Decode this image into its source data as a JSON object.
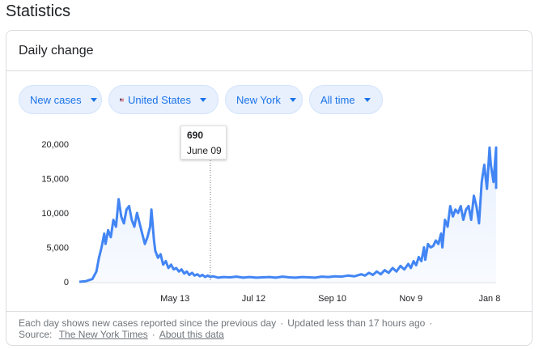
{
  "page": {
    "title": "Statistics"
  },
  "card": {
    "title": "Daily change"
  },
  "filters": {
    "metric": {
      "label": "New cases"
    },
    "country": {
      "label": "United States",
      "flag_icon": "us-flag-icon"
    },
    "region": {
      "label": "New York"
    },
    "range": {
      "label": "All time"
    }
  },
  "colors": {
    "line": "#4285f4",
    "area": "#e8f0fe",
    "accent": "#1a73e8"
  },
  "tooltip": {
    "value": "690",
    "date": "June 09"
  },
  "chart_data": {
    "type": "area",
    "ylim": [
      0,
      20000
    ],
    "y_ticks": [
      "0",
      "5,000",
      "10,000",
      "15,000",
      "20,000"
    ],
    "y_tick_values": [
      0,
      5000,
      10000,
      15000,
      20000
    ],
    "x_ticks": [
      {
        "label": "May 13",
        "day": 73
      },
      {
        "label": "Jul 12",
        "day": 133
      },
      {
        "label": "Sep 10",
        "day": 193
      },
      {
        "label": "Nov 9",
        "day": 253
      },
      {
        "label": "Jan 8",
        "day": 313
      }
    ],
    "xlim": [
      0,
      318
    ],
    "grid": false,
    "highlight_day": 100,
    "series": [
      {
        "points": [
          [
            0,
            0
          ],
          [
            5,
            100
          ],
          [
            10,
            400
          ],
          [
            13,
            1500
          ],
          [
            15,
            3500
          ],
          [
            17,
            5000
          ],
          [
            19,
            7000
          ],
          [
            20,
            5500
          ],
          [
            22,
            7500
          ],
          [
            24,
            6500
          ],
          [
            26,
            9000
          ],
          [
            28,
            8000
          ],
          [
            30,
            12000
          ],
          [
            32,
            9500
          ],
          [
            34,
            8500
          ],
          [
            36,
            10500
          ],
          [
            38,
            11000
          ],
          [
            40,
            9000
          ],
          [
            42,
            8000
          ],
          [
            44,
            10000
          ],
          [
            46,
            8500
          ],
          [
            48,
            7000
          ],
          [
            50,
            5500
          ],
          [
            52,
            6500
          ],
          [
            54,
            8000
          ],
          [
            55,
            10500
          ],
          [
            57,
            6000
          ],
          [
            58,
            4500
          ],
          [
            60,
            3500
          ],
          [
            62,
            4000
          ],
          [
            64,
            2500
          ],
          [
            66,
            3000
          ],
          [
            68,
            2000
          ],
          [
            70,
            2500
          ],
          [
            72,
            1800
          ],
          [
            74,
            2000
          ],
          [
            76,
            1500
          ],
          [
            78,
            1800
          ],
          [
            80,
            1200
          ],
          [
            82,
            1500
          ],
          [
            84,
            1000
          ],
          [
            86,
            1300
          ],
          [
            88,
            900
          ],
          [
            90,
            1100
          ],
          [
            92,
            800
          ],
          [
            94,
            1000
          ],
          [
            96,
            700
          ],
          [
            98,
            900
          ],
          [
            100,
            690
          ],
          [
            102,
            800
          ],
          [
            106,
            600
          ],
          [
            110,
            700
          ],
          [
            115,
            650
          ],
          [
            120,
            750
          ],
          [
            125,
            600
          ],
          [
            130,
            700
          ],
          [
            135,
            600
          ],
          [
            140,
            650
          ],
          [
            145,
            700
          ],
          [
            150,
            600
          ],
          [
            155,
            750
          ],
          [
            160,
            650
          ],
          [
            165,
            600
          ],
          [
            170,
            700
          ],
          [
            175,
            650
          ],
          [
            180,
            600
          ],
          [
            185,
            750
          ],
          [
            190,
            700
          ],
          [
            195,
            800
          ],
          [
            200,
            750
          ],
          [
            205,
            900
          ],
          [
            210,
            800
          ],
          [
            215,
            1100
          ],
          [
            218,
            900
          ],
          [
            221,
            1300
          ],
          [
            224,
            1000
          ],
          [
            227,
            1500
          ],
          [
            230,
            1100
          ],
          [
            233,
            1700
          ],
          [
            236,
            1300
          ],
          [
            239,
            2000
          ],
          [
            242,
            1500
          ],
          [
            245,
            2300
          ],
          [
            248,
            1800
          ],
          [
            251,
            2600
          ],
          [
            253,
            2000
          ],
          [
            255,
            3000
          ],
          [
            257,
            2400
          ],
          [
            259,
            3600
          ],
          [
            261,
            3000
          ],
          [
            263,
            5000
          ],
          [
            264,
            3200
          ],
          [
            266,
            5500
          ],
          [
            268,
            5000
          ],
          [
            270,
            5200
          ],
          [
            272,
            6000
          ],
          [
            274,
            5500
          ],
          [
            276,
            7000
          ],
          [
            277,
            5000
          ],
          [
            279,
            9000
          ],
          [
            281,
            8000
          ],
          [
            283,
            11000
          ],
          [
            285,
            9500
          ],
          [
            287,
            10500
          ],
          [
            289,
            10000
          ],
          [
            291,
            11000
          ],
          [
            293,
            9000
          ],
          [
            295,
            10500
          ],
          [
            297,
            11000
          ],
          [
            299,
            9000
          ],
          [
            301,
            12500
          ],
          [
            303,
            11000
          ],
          [
            305,
            8500
          ],
          [
            307,
            14500
          ],
          [
            309,
            17000
          ],
          [
            311,
            13500
          ],
          [
            313,
            19500
          ],
          [
            314,
            17000
          ],
          [
            316,
            14500
          ],
          [
            318,
            19500
          ],
          [
            320,
            13500
          ]
        ]
      }
    ]
  },
  "footer": {
    "description": "Each day shows new cases reported since the previous day",
    "updated": "Updated less than 17 hours ago",
    "source_label": "Source:",
    "source_link": "The New York Times",
    "about_link": "About this data"
  }
}
